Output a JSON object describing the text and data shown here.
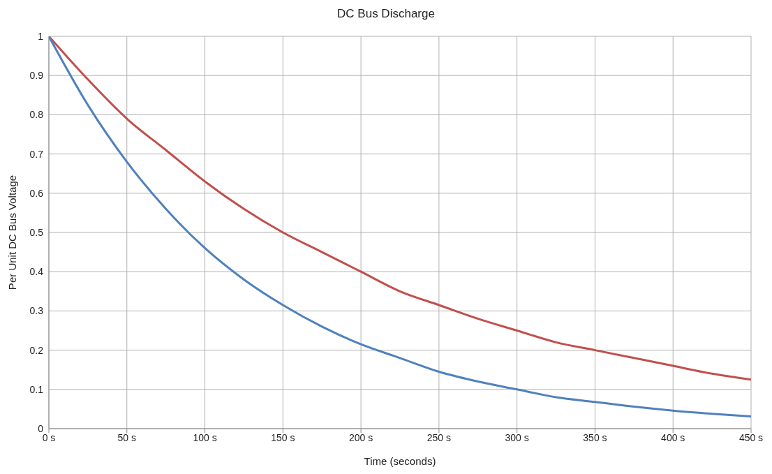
{
  "chart_data": {
    "type": "line",
    "title": "DC Bus Discharge",
    "xlabel": "Time (seconds)",
    "ylabel": "Per Unit DC Bus Voltage",
    "x": [
      0,
      25,
      50,
      75,
      100,
      125,
      150,
      175,
      200,
      225,
      250,
      275,
      300,
      325,
      350,
      375,
      400,
      425,
      450
    ],
    "series": [
      {
        "color": "#c0504d",
        "values": [
          1,
          0.89,
          0.79,
          0.71,
          0.63,
          0.56,
          0.5,
          0.45,
          0.4,
          0.35,
          0.315,
          0.28,
          0.25,
          0.22,
          0.2,
          0.18,
          0.16,
          0.14,
          0.125
        ]
      },
      {
        "color": "#4f81bd",
        "values": [
          1,
          0.825,
          0.68,
          0.56,
          0.46,
          0.38,
          0.315,
          0.26,
          0.215,
          0.18,
          0.145,
          0.12,
          0.1,
          0.08,
          0.068,
          0.056,
          0.046,
          0.038,
          0.031
        ]
      }
    ],
    "xlim": [
      0,
      450
    ],
    "xticks": [
      {
        "value": 0,
        "label": "0 s"
      },
      {
        "value": 50,
        "label": "50 s"
      },
      {
        "value": 100,
        "label": "100 s"
      },
      {
        "value": 150,
        "label": "150 s"
      },
      {
        "value": 200,
        "label": "200 s"
      },
      {
        "value": 250,
        "label": "250 s"
      },
      {
        "value": 300,
        "label": "300 s"
      },
      {
        "value": 350,
        "label": "350 s"
      },
      {
        "value": 400,
        "label": "400 s"
      },
      {
        "value": 450,
        "label": "450 s"
      }
    ],
    "ylim": [
      0,
      1
    ],
    "yticks": [
      0,
      0.1,
      0.2,
      0.3,
      0.4,
      0.5,
      0.6,
      0.7,
      0.8,
      0.9,
      1
    ],
    "grid": true,
    "legend": false,
    "marker": "none",
    "line_style": "solid"
  }
}
